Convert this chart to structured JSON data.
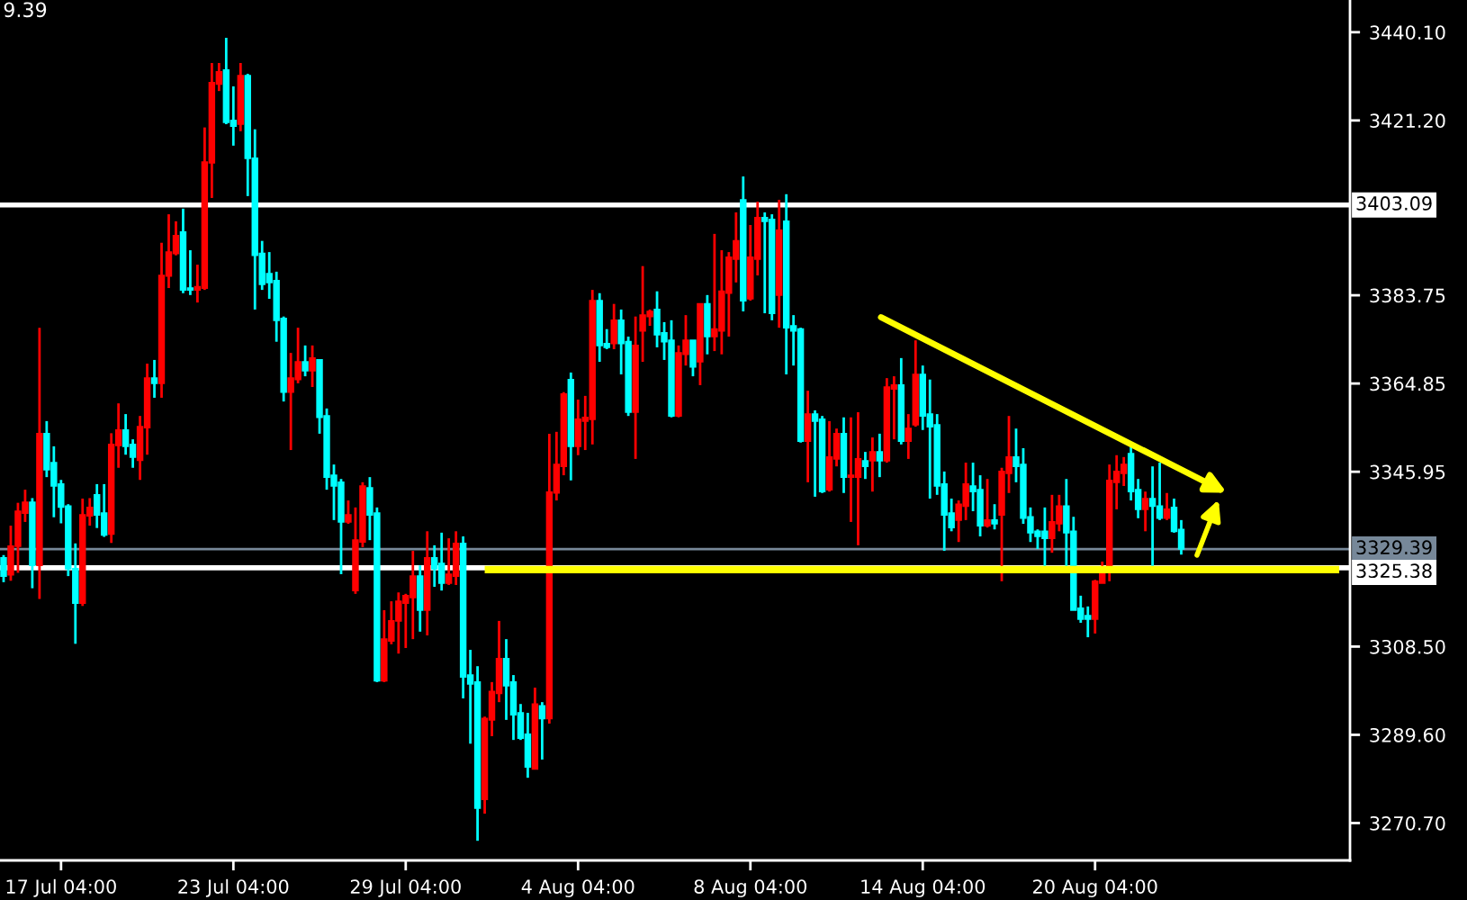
{
  "chart_data": {
    "type": "candlestick",
    "annotations": [
      "9.39"
    ],
    "categories": [
      null,
      null,
      null,
      null,
      null,
      null,
      null,
      null,
      "17 Jul 04:00",
      null,
      null,
      null,
      null,
      null,
      null,
      null,
      null,
      null,
      null,
      null,
      null,
      null,
      null,
      null,
      null,
      null,
      null,
      null,
      null,
      null,
      null,
      null,
      "23 Jul 04:00",
      null,
      null,
      null,
      null,
      null,
      null,
      null,
      null,
      null,
      null,
      null,
      null,
      null,
      null,
      null,
      null,
      null,
      null,
      null,
      null,
      null,
      null,
      null,
      "29 Jul 04:00",
      null,
      null,
      null,
      null,
      null,
      null,
      null,
      null,
      null,
      null,
      null,
      null,
      null,
      null,
      null,
      null,
      null,
      null,
      null,
      null,
      null,
      null,
      null,
      "4 Aug 04:00",
      null,
      null,
      null,
      null,
      null,
      null,
      null,
      null,
      null,
      null,
      null,
      null,
      null,
      null,
      null,
      null,
      null,
      null,
      null,
      null,
      null,
      null,
      null,
      "8 Aug 04:00",
      null,
      null,
      null,
      null,
      null,
      null,
      null,
      null,
      null,
      null,
      null,
      null,
      null,
      null,
      null,
      null,
      null,
      null,
      null,
      null,
      null,
      null,
      null,
      "14 Aug 04:00",
      null,
      null,
      null,
      null,
      null,
      null,
      null,
      null,
      null,
      null,
      null,
      null,
      null,
      null,
      null,
      null,
      null,
      null,
      null,
      null,
      null,
      null,
      null,
      "20 Aug 04:00",
      null,
      null,
      null,
      null,
      null,
      null,
      null,
      null,
      null,
      null,
      null,
      null,
      null,
      null,
      null,
      null,
      null,
      null,
      null,
      null,
      null,
      null,
      null,
      null,
      null,
      null,
      null,
      null,
      null,
      null,
      null,
      null,
      null,
      null,
      null
    ],
    "colors": [
      "#00ffff",
      "#ff0000",
      "#ff0000",
      "#ff0000",
      "#00ffff",
      "#ff0000",
      "#00ffff",
      "#00ffff",
      "#00ffff",
      "#00ffff",
      "#00ffff",
      "#ff0000",
      "#ff0000",
      "#00ffff",
      "#00ffff",
      "#ff0000",
      "#ff0000",
      "#00ffff",
      "#00ffff",
      "#ff0000",
      "#ff0000",
      "#00ffff",
      "#ff0000",
      "#ff0000",
      "#ff0000",
      "#00ffff",
      "#00ffff",
      "#ff0000",
      "#ff0000",
      "#ff0000",
      "#ff0000",
      "#00ffff",
      "#00ffff",
      "#ff0000",
      "#00ffff",
      "#00ffff",
      "#00ffff",
      "#00ffff",
      "#00ffff",
      "#00ffff",
      "#ff0000",
      "#ff0000",
      "#00ffff",
      "#ff0000",
      "#00ffff",
      "#00ffff",
      "#00ffff",
      "#00ffff",
      "#ff0000",
      "#ff0000",
      "#ff0000",
      "#00ffff",
      "#00ffff",
      "#ff0000",
      "#ff0000",
      "#ff0000",
      "#ff0000",
      "#ff0000",
      "#00ffff",
      "#ff0000",
      "#00ffff",
      "#00ffff",
      "#ff0000",
      "#ff0000",
      "#00ffff",
      "#00ffff",
      "#00ffff",
      "#ff0000",
      "#ff0000",
      "#ff0000",
      "#00ffff",
      "#00ffff",
      "#00ffff",
      "#00ffff",
      "#ff0000",
      "#00ffff",
      "#ff0000",
      "#ff0000",
      "#ff0000",
      "#00ffff",
      "#ff0000",
      "#ff0000",
      "#ff0000",
      "#00ffff",
      "#00ffff",
      "#ff0000",
      "#00ffff",
      "#00ffff",
      "#ff0000",
      "#ff0000",
      "#ff0000",
      "#00ffff",
      "#00ffff",
      "#00ffff",
      "#ff0000",
      "#ff0000",
      "#00ffff",
      "#ff0000",
      "#00ffff",
      "#ff0000",
      "#ff0000",
      "#ff0000",
      "#ff0000",
      "#00ffff",
      "#ff0000",
      "#ff0000",
      "#00ffff",
      "#00ffff",
      "#ff0000",
      "#00ffff",
      "#00ffff",
      "#00ffff",
      "#ff0000",
      "#00ffff",
      "#00ffff",
      "#ff0000",
      "#ff0000",
      "#00ffff",
      "#ff0000",
      "#ff0000",
      "#00ffff",
      "#ff0000",
      "#00ffff",
      "#ff0000",
      "#ff0000",
      "#00ffff",
      "#ff0000",
      "#ff0000",
      "#00ffff",
      "#00ffff",
      "#00ffff",
      "#00ffff",
      "#00ffff",
      "#ff0000",
      "#ff0000",
      "#00ffff",
      "#00ffff",
      "#ff0000",
      "#00ffff",
      "#ff0000",
      "#ff0000",
      "#00ffff",
      "#00ffff",
      "#00ffff",
      "#00ffff",
      "#00ffff",
      "#ff0000",
      "#ff0000",
      "#00ffff",
      "#00ffff",
      "#00ffff",
      "#00ffff",
      "#ff0000",
      "#ff0000",
      "#ff0000",
      "#ff0000",
      "#ff0000",
      "#00ffff",
      "#00ffff",
      "#ff0000",
      "#00ffff",
      "#00ffff",
      "#ff0000",
      "#00ffff",
      "#00ffff",
      null,
      null,
      null,
      null,
      null,
      null,
      null,
      null,
      null,
      null,
      null,
      null,
      null,
      null,
      null,
      null,
      null,
      null,
      null,
      null,
      null,
      null,
      null
    ],
    "ohlc": [
      [
        3327.5,
        3328.1,
        3322.3,
        3323.6
      ],
      [
        3323.9,
        3334.4,
        3322.6,
        3330.0
      ],
      [
        3330.0,
        3339.3,
        3324.3,
        3337.5
      ],
      [
        3337.1,
        3342.1,
        3335.2,
        3339.4
      ],
      [
        3339.4,
        3340.3,
        3321.0,
        3325.9
      ],
      [
        3325.9,
        3376.8,
        3318.7,
        3354.1
      ],
      [
        3354.1,
        3356.8,
        3344.8,
        3346.4
      ],
      [
        3347.9,
        3351.4,
        3336.2,
        3342.9
      ],
      [
        3343.3,
        3344.2,
        3334.9,
        3338.4
      ],
      [
        3338.6,
        3339.0,
        3323.6,
        3325.2
      ],
      [
        3325.2,
        3330.6,
        3309.1,
        3317.8
      ],
      [
        3317.8,
        3340.2,
        3317.2,
        3336.7
      ],
      [
        3336.5,
        3340.3,
        3334.4,
        3338.3
      ],
      [
        3341.0,
        3343.3,
        3333.9,
        3336.7
      ],
      [
        3337.1,
        3343.3,
        3332.0,
        3332.4
      ],
      [
        3332.6,
        3354.2,
        3330.7,
        3351.8
      ],
      [
        3351.6,
        3360.6,
        3346.8,
        3354.9
      ],
      [
        3354.9,
        3358.3,
        3349.6,
        3351.4
      ],
      [
        3351.8,
        3352.9,
        3346.8,
        3349.1
      ],
      [
        3348.4,
        3357.9,
        3344.2,
        3355.6
      ],
      [
        3355.4,
        3369.1,
        3349.6,
        3366.0
      ],
      [
        3366.0,
        3369.9,
        3361.8,
        3364.9
      ],
      [
        3364.9,
        3395.0,
        3361.8,
        3388.0
      ],
      [
        3387.9,
        3401.1,
        3385.3,
        3393.0
      ],
      [
        3392.7,
        3399.6,
        3392.3,
        3396.5
      ],
      [
        3397.3,
        3402.3,
        3384.2,
        3384.9
      ],
      [
        3385.3,
        3393.4,
        3383.8,
        3384.9
      ],
      [
        3384.9,
        3390.3,
        3382.2,
        3385.6
      ],
      [
        3385.3,
        3419.7,
        3384.9,
        3412.3
      ],
      [
        3412.1,
        3433.5,
        3404.6,
        3429.3
      ],
      [
        3429.0,
        3433.5,
        3427.5,
        3431.6
      ],
      [
        3432.0,
        3438.9,
        3420.4,
        3420.8
      ],
      [
        3421.2,
        3428.5,
        3415.8,
        3420.0
      ],
      [
        3420.4,
        3433.5,
        3418.9,
        3430.8
      ],
      [
        3430.8,
        3431.2,
        3405.0,
        3413.1
      ],
      [
        3413.1,
        3419.3,
        3380.7,
        3392.3
      ],
      [
        3392.7,
        3395.4,
        3384.9,
        3386.1
      ],
      [
        3388.4,
        3393.0,
        3383.0,
        3386.5
      ],
      [
        3386.9,
        3388.8,
        3373.8,
        3378.4
      ],
      [
        3378.8,
        3379.2,
        3361.0,
        3363.0
      ],
      [
        3363.0,
        3371.4,
        3350.6,
        3366.0
      ],
      [
        3365.7,
        3376.8,
        3364.9,
        3369.5
      ],
      [
        3369.5,
        3373.0,
        3366.4,
        3367.6
      ],
      [
        3367.6,
        3373.0,
        3364.1,
        3370.3
      ],
      [
        3369.9,
        3369.9,
        3354.1,
        3357.6
      ],
      [
        3357.9,
        3359.5,
        3342.1,
        3344.8
      ],
      [
        3345.2,
        3347.5,
        3335.6,
        3342.9
      ],
      [
        3343.7,
        3344.4,
        3324.0,
        3335.2
      ],
      [
        3335.2,
        3339.8,
        3334.8,
        3336.7
      ],
      [
        3320.5,
        3338.3,
        3319.8,
        3331.3
      ],
      [
        3330.9,
        3343.7,
        3329.8,
        3342.9
      ],
      [
        3342.5,
        3344.8,
        3331.3,
        3336.7
      ],
      [
        3337.1,
        3338.3,
        3300.9,
        3301.2
      ],
      [
        3301.2,
        3316.3,
        3300.9,
        3310.1
      ],
      [
        3309.7,
        3318.2,
        3309.0,
        3314.0
      ],
      [
        3314.0,
        3320.1,
        3307.0,
        3318.2
      ],
      [
        3317.8,
        3319.8,
        3308.2,
        3319.4
      ],
      [
        3319.0,
        3329.0,
        3310.1,
        3323.6
      ],
      [
        3323.6,
        3325.9,
        3311.7,
        3316.3
      ],
      [
        3316.3,
        3333.2,
        3310.9,
        3327.5
      ],
      [
        3327.5,
        3330.2,
        3321.3,
        3325.2
      ],
      [
        3326.3,
        3332.9,
        3320.5,
        3322.1
      ],
      [
        3322.1,
        3331.7,
        3321.7,
        3324.0
      ],
      [
        3323.6,
        3333.2,
        3321.7,
        3330.6
      ],
      [
        3330.6,
        3332.1,
        3297.4,
        3302.0
      ],
      [
        3302.4,
        3307.8,
        3287.7,
        3300.5
      ],
      [
        3300.9,
        3304.3,
        3266.9,
        3273.9
      ],
      [
        3275.8,
        3293.5,
        3272.7,
        3293.1
      ],
      [
        3292.8,
        3300.9,
        3289.3,
        3298.9
      ],
      [
        3298.5,
        3314.0,
        3296.6,
        3305.9
      ],
      [
        3305.9,
        3310.1,
        3292.8,
        3300.1
      ],
      [
        3300.9,
        3302.4,
        3288.5,
        3293.9
      ],
      [
        3294.3,
        3296.2,
        3288.5,
        3288.9
      ],
      [
        3289.7,
        3294.3,
        3280.4,
        3282.7
      ],
      [
        3282.3,
        3299.7,
        3282.3,
        3296.2
      ],
      [
        3295.8,
        3296.6,
        3284.3,
        3293.1
      ],
      [
        3293.1,
        3354.1,
        3292.0,
        3341.6
      ],
      [
        3341.4,
        3354.5,
        3339.8,
        3347.5
      ],
      [
        3347.1,
        3363.0,
        3345.2,
        3362.6
      ],
      [
        3365.7,
        3367.2,
        3344.1,
        3351.4
      ],
      [
        3351.4,
        3361.4,
        3349.5,
        3357.2
      ],
      [
        3356.8,
        3362.2,
        3350.6,
        3357.6
      ],
      [
        3357.2,
        3384.9,
        3351.8,
        3382.6
      ],
      [
        3382.6,
        3384.2,
        3369.5,
        3373.0
      ],
      [
        3373.4,
        3376.5,
        3372.2,
        3372.6
      ],
      [
        3373.4,
        3381.9,
        3372.2,
        3378.4
      ],
      [
        3378.4,
        3380.7,
        3366.8,
        3373.4
      ],
      [
        3373.8,
        3374.9,
        3357.9,
        3358.7
      ],
      [
        3358.7,
        3379.2,
        3348.7,
        3373.0
      ],
      [
        3376.1,
        3390.0,
        3369.5,
        3379.5
      ],
      [
        3379.2,
        3380.7,
        3377.2,
        3380.3
      ],
      [
        3380.7,
        3384.6,
        3372.6,
        3375.3
      ],
      [
        3375.7,
        3378.0,
        3369.9,
        3373.8
      ],
      [
        3374.1,
        3378.4,
        3357.6,
        3357.9
      ],
      [
        3357.9,
        3373.0,
        3357.6,
        3371.4
      ],
      [
        3371.1,
        3379.5,
        3368.7,
        3374.1
      ],
      [
        3374.1,
        3374.1,
        3366.4,
        3368.4
      ],
      [
        3369.5,
        3381.9,
        3364.5,
        3381.9
      ],
      [
        3381.9,
        3383.8,
        3371.1,
        3374.9
      ],
      [
        3374.9,
        3396.9,
        3371.8,
        3376.5
      ],
      [
        3376.1,
        3393.4,
        3371.1,
        3384.6
      ],
      [
        3384.2,
        3393.0,
        3374.9,
        3391.9
      ],
      [
        3391.5,
        3401.5,
        3386.5,
        3395.4
      ],
      [
        3404.2,
        3409.2,
        3380.3,
        3382.6
      ],
      [
        3383.0,
        3398.8,
        3382.6,
        3391.9
      ],
      [
        3391.5,
        3403.8,
        3388.0,
        3400.4
      ],
      [
        3400.4,
        3401.5,
        3379.9,
        3399.6
      ],
      [
        3400.0,
        3401.1,
        3378.4,
        3379.9
      ],
      [
        3383.8,
        3404.2,
        3376.8,
        3397.7
      ],
      [
        3399.6,
        3405.4,
        3366.8,
        3376.8
      ],
      [
        3377.2,
        3379.5,
        3368.7,
        3376.1
      ],
      [
        3376.5,
        3376.8,
        3352.2,
        3352.5
      ],
      [
        3352.5,
        3363.3,
        3343.7,
        3358.3
      ],
      [
        3358.3,
        3359.1,
        3340.6,
        3356.8
      ],
      [
        3357.2,
        3357.9,
        3341.4,
        3341.7
      ],
      [
        3342.1,
        3356.8,
        3341.7,
        3349.1
      ],
      [
        3348.7,
        3355.2,
        3347.1,
        3354.1
      ],
      [
        3354.1,
        3357.6,
        3341.4,
        3344.8
      ],
      [
        3344.8,
        3357.6,
        3335.2,
        3345.2
      ],
      [
        3344.8,
        3358.7,
        3330.2,
        3348.7
      ],
      [
        3348.3,
        3350.2,
        3344.4,
        3347.1
      ],
      [
        3348.3,
        3353.3,
        3341.7,
        3350.2
      ],
      [
        3350.2,
        3354.1,
        3344.8,
        3348.3
      ],
      [
        3348.3,
        3366.0,
        3347.9,
        3364.1
      ],
      [
        3363.7,
        3366.4,
        3352.9,
        3364.5
      ],
      [
        3364.5,
        3370.3,
        3351.8,
        3352.5
      ],
      [
        3352.5,
        3358.3,
        3348.7,
        3355.2
      ],
      [
        3356.0,
        3374.1,
        3355.6,
        3366.8
      ],
      [
        3366.8,
        3368.7,
        3354.9,
        3357.9
      ],
      [
        3358.3,
        3365.7,
        3340.2,
        3355.6
      ],
      [
        3356.0,
        3358.3,
        3341.0,
        3342.9
      ],
      [
        3343.3,
        3346.0,
        3329.0,
        3336.7
      ],
      [
        3337.1,
        3340.2,
        3333.2,
        3334.0
      ],
      [
        3335.6,
        3339.8,
        3330.9,
        3339.0
      ],
      [
        3338.6,
        3347.9,
        3335.6,
        3343.3
      ],
      [
        3342.9,
        3347.9,
        3337.5,
        3341.7
      ],
      [
        3342.1,
        3345.2,
        3332.1,
        3334.4
      ],
      [
        3334.4,
        3344.4,
        3334.0,
        3335.6
      ],
      [
        3335.6,
        3339.0,
        3333.6,
        3334.8
      ],
      [
        3336.7,
        3346.8,
        3322.5,
        3346.0
      ],
      [
        3345.6,
        3357.9,
        3341.4,
        3349.1
      ],
      [
        3349.1,
        3355.2,
        3343.7,
        3347.1
      ],
      [
        3347.5,
        3351.0,
        3334.8,
        3336.0
      ],
      [
        3336.3,
        3338.3,
        3330.9,
        3332.9
      ],
      [
        3333.2,
        3333.6,
        3329.4,
        3332.1
      ],
      [
        3333.2,
        3338.3,
        3325.2,
        3331.7
      ],
      [
        3331.7,
        3341.0,
        3328.6,
        3335.2
      ],
      [
        3334.8,
        3341.0,
        3333.2,
        3338.6
      ],
      [
        3338.6,
        3344.4,
        3325.2,
        3332.9
      ],
      [
        3333.2,
        3336.3,
        3316.3,
        3316.3
      ],
      [
        3316.7,
        3319.4,
        3313.6,
        3314.4
      ],
      [
        3315.1,
        3317.1,
        3310.5,
        3314.4
      ],
      [
        3314.4,
        3322.8,
        3311.3,
        3322.5
      ],
      [
        3322.1,
        3326.7,
        3322.1,
        3325.5
      ],
      [
        3325.5,
        3347.5,
        3322.5,
        3344.1
      ],
      [
        3343.7,
        3349.5,
        3337.9,
        3346.0
      ],
      [
        3345.6,
        3349.1,
        3342.9,
        3347.5
      ],
      [
        3349.8,
        3351.4,
        3339.8,
        3341.7
      ],
      [
        3342.1,
        3344.4,
        3336.0,
        3337.9
      ],
      [
        3337.9,
        3341.7,
        3333.2,
        3340.2
      ],
      [
        3340.2,
        3347.1,
        3325.2,
        3338.6
      ],
      [
        3338.6,
        3347.9,
        3335.6,
        3336.0
      ],
      [
        3336.0,
        3341.4,
        3335.6,
        3337.9
      ],
      [
        3338.3,
        3340.2,
        3332.9,
        3333.2
      ],
      [
        3333.6,
        3335.6,
        3328.2,
        3329.4
      ],
      null,
      null,
      null,
      null,
      null,
      null,
      null,
      null,
      null,
      null,
      null,
      null,
      null,
      null,
      null,
      null,
      null,
      null,
      null,
      null,
      null,
      null,
      null
    ],
    "series": [
      {
        "type": "line",
        "color": "#ffff00",
        "values": [
          null,
          null,
          null,
          null,
          null,
          null,
          null,
          null,
          null,
          null,
          null,
          null,
          null,
          null,
          null,
          null,
          null,
          null,
          null,
          null,
          null,
          null,
          null,
          null,
          null,
          null,
          null,
          null,
          null,
          null,
          null,
          null,
          null,
          null,
          null,
          null,
          null,
          null,
          null,
          null,
          null,
          null,
          null,
          null,
          null,
          null,
          null,
          null,
          null,
          null,
          null,
          null,
          null,
          null,
          null,
          null,
          null,
          null,
          null,
          null,
          null,
          null,
          null,
          null,
          null,
          null,
          null,
          3325,
          3325,
          3325,
          3325,
          3325,
          3325,
          3325,
          3325,
          3325,
          3325,
          3325,
          3325,
          3325,
          3325,
          3325,
          3325,
          3325,
          3325,
          3325,
          3325,
          3325,
          3325,
          3325,
          3325,
          3325,
          3325,
          3325,
          3325,
          3325,
          3325,
          3325,
          3325,
          3325,
          3325,
          3325,
          3325,
          3325,
          3325,
          3325,
          3325,
          3325,
          3325,
          3325,
          3325,
          3325,
          3325,
          3325,
          3325,
          3325,
          3325,
          3325,
          3325,
          3325,
          3325,
          3325,
          3325,
          3325,
          3325,
          3325,
          3325,
          3325,
          3325,
          3325,
          3325,
          3325,
          3325,
          3325,
          3325,
          3325,
          3325,
          3325,
          3325,
          3325,
          3325,
          3325,
          3325,
          3325,
          3325,
          3325,
          3325,
          3325,
          3325,
          3325,
          3325,
          3325,
          3325,
          3325,
          3325,
          3325,
          3325,
          3325,
          3325,
          3325,
          3325,
          3325,
          3325,
          3325,
          3325,
          3325,
          3325,
          3325,
          3325,
          3325,
          3325,
          3325,
          3325,
          3325,
          3325,
          3325,
          3325,
          3325,
          3325,
          3325,
          3325,
          3325,
          3325,
          3325,
          3325,
          3325,
          3325,
          null
        ]
      }
    ],
    "ref_lines": [
      {
        "axis": "y",
        "value": 3403.09,
        "label": "3403.09",
        "color": "#ffffff"
      },
      {
        "axis": "y",
        "value": 3325.38,
        "label": "3325.38",
        "color": "#ffffff"
      },
      {
        "axis": "y",
        "value": 3329.39,
        "label": "3329.39",
        "color": "#778899"
      }
    ],
    "ylim": [
      3262.7,
      3447.0
    ],
    "yticks": [
      {
        "value": 3440.1,
        "label": "3440.10"
      },
      {
        "value": 3421.2,
        "label": "3421.20"
      },
      {
        "value": 3383.75,
        "label": "3383.75"
      },
      {
        "value": 3364.85,
        "label": "3364.85"
      },
      {
        "value": 3345.95,
        "label": "3345.95"
      },
      {
        "value": 3308.5,
        "label": "3308.50"
      },
      {
        "value": 3289.6,
        "label": "3289.60"
      },
      {
        "value": 3270.7,
        "label": "3270.70"
      }
    ]
  }
}
